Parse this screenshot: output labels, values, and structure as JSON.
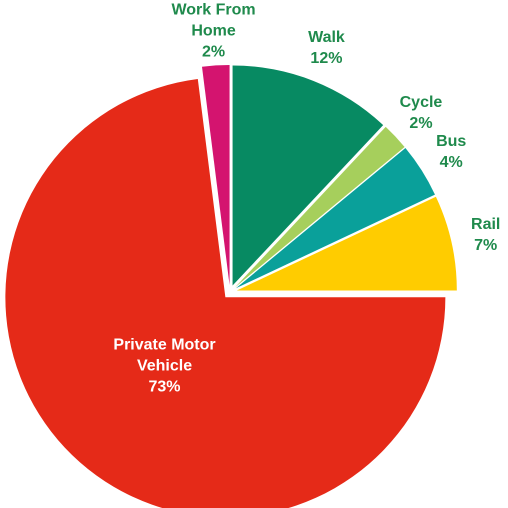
{
  "chart_data": {
    "type": "pie",
    "categories": [
      "Walk",
      "Cycle",
      "Bus",
      "Rail",
      "Private Motor Vehicle",
      "Work From Home"
    ],
    "values": [
      12,
      2,
      4,
      7,
      73,
      2
    ],
    "value_labels": [
      "12%",
      "2%",
      "4%",
      "7%",
      "73%",
      "2%"
    ],
    "colors": [
      "#078a62",
      "#a6cf5c",
      "#0aa09a",
      "#ffcc00",
      "#e52a18",
      "#d4146f"
    ],
    "label_colors": [
      "#1f8a4c",
      "#1f8a4c",
      "#1f8a4c",
      "#1f8a4c",
      "#ffffff",
      "#1f8a4c"
    ]
  }
}
